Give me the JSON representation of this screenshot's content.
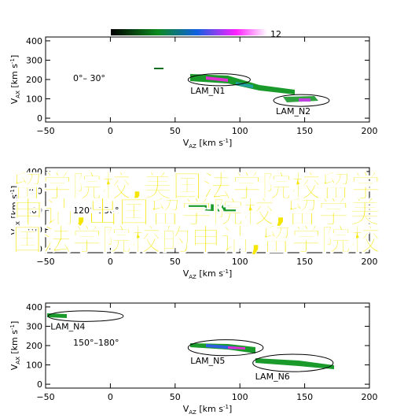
{
  "chart_data": [
    {
      "type": "scatter",
      "colorbar_ticks": [
        12
      ],
      "annotation": "0°– 30°",
      "xlim": [
        -50,
        200
      ],
      "ylim": [
        -20,
        420
      ],
      "xticks": [
        {
          "value": -50,
          "label": "−50"
        },
        0,
        50,
        100,
        150,
        200
      ],
      "yticks": [
        0,
        100,
        200,
        300,
        400
      ],
      "x_label": {
        "symbol": "V",
        "sub": "AZ",
        "unit": " [km s",
        "sup": "-1",
        "close": "]"
      },
      "y_label": {
        "symbol": "V",
        "sub": "AX",
        "unit": " [km s",
        "sup": "-1",
        "close": "]"
      },
      "regions": [
        {
          "label": "LAM_N1",
          "x": [
            60,
            108
          ],
          "y": [
            168,
            230
          ]
        },
        {
          "label": "LAM_N2",
          "x": [
            126,
            169
          ],
          "y": [
            61,
            122
          ]
        }
      ]
    },
    {
      "type": "scatter",
      "annotation": "120°–150°",
      "xlim": [
        -50,
        200
      ],
      "ylim": [
        -20,
        420
      ],
      "xticks": [
        {
          "value": -50,
          "label": "−50"
        },
        0,
        50,
        100,
        150,
        200
      ],
      "yticks": [
        0,
        100,
        200,
        300,
        400
      ],
      "x_label": {
        "symbol": "V",
        "sub": "AZ",
        "unit": " [km s",
        "sup": "-1",
        "close": "]"
      },
      "y_label": {
        "symbol": "V",
        "sub": "AX",
        "unit": " [km s",
        "sup": "-1",
        "close": "]"
      },
      "regions": []
    },
    {
      "type": "scatter",
      "annotation": "150°–180°",
      "xlim": [
        -50,
        200
      ],
      "ylim": [
        -20,
        420
      ],
      "xticks": [
        {
          "value": -50,
          "label": "−50"
        },
        0,
        50,
        100,
        150,
        200
      ],
      "yticks": [
        0,
        100,
        200,
        300,
        400
      ],
      "x_label": {
        "symbol": "V",
        "sub": "AZ",
        "unit": " [km s",
        "sup": "-1",
        "close": "]"
      },
      "y_label": {
        "symbol": "V",
        "sub": "AX",
        "unit": " [km s",
        "sup": "-1",
        "close": "]"
      },
      "regions": [
        {
          "label": "LAM_N4",
          "x": [
            -48,
            10
          ],
          "y": [
            325,
            380
          ]
        },
        {
          "label": "LAM_N5",
          "x": [
            60,
            118
          ],
          "y": [
            148,
            230
          ]
        },
        {
          "label": "LAM_N6",
          "x": [
            110,
            172
          ],
          "y": [
            65,
            155
          ]
        }
      ]
    }
  ],
  "overlay": {
    "lines": [
      "留学院校,美国法学院校留学",
      "申请,出国留学院校,留学美",
      "国法学院校的申请,留学院校"
    ]
  }
}
